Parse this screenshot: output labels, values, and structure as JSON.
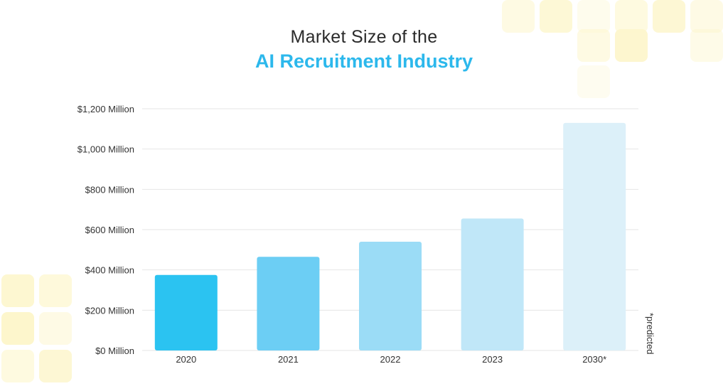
{
  "title_line1": "Market Size of the",
  "title_line2": "AI Recruitment Industry",
  "colors": {
    "title_accent": "#2cb8ec",
    "bars": [
      "#2bc3f1",
      "#6ccef4",
      "#9bdcf6",
      "#c0e7f8",
      "#dcf0f9"
    ],
    "grid": "#e6e6e6",
    "deco": "#fdf6cc"
  },
  "chart_data": {
    "type": "bar",
    "title": "Market Size of the AI Recruitment Industry",
    "categories": [
      "2020",
      "2021",
      "2022",
      "2023",
      "2030*"
    ],
    "values": [
      375,
      465,
      540,
      655,
      1130
    ],
    "unit": "$ Million",
    "ylim": [
      0,
      1200
    ],
    "yticks": [
      {
        "value": 0,
        "label": "$0 Million"
      },
      {
        "value": 200,
        "label": "$200 Million"
      },
      {
        "value": 400,
        "label": "$400 Million"
      },
      {
        "value": 600,
        "label": "$600 Million"
      },
      {
        "value": 800,
        "label": "$800 Million"
      },
      {
        "value": 1000,
        "label": "$1,000 Million"
      },
      {
        "value": 1200,
        "label": "$1,200 Million"
      }
    ],
    "grid": true,
    "footnote": "*predicted"
  }
}
